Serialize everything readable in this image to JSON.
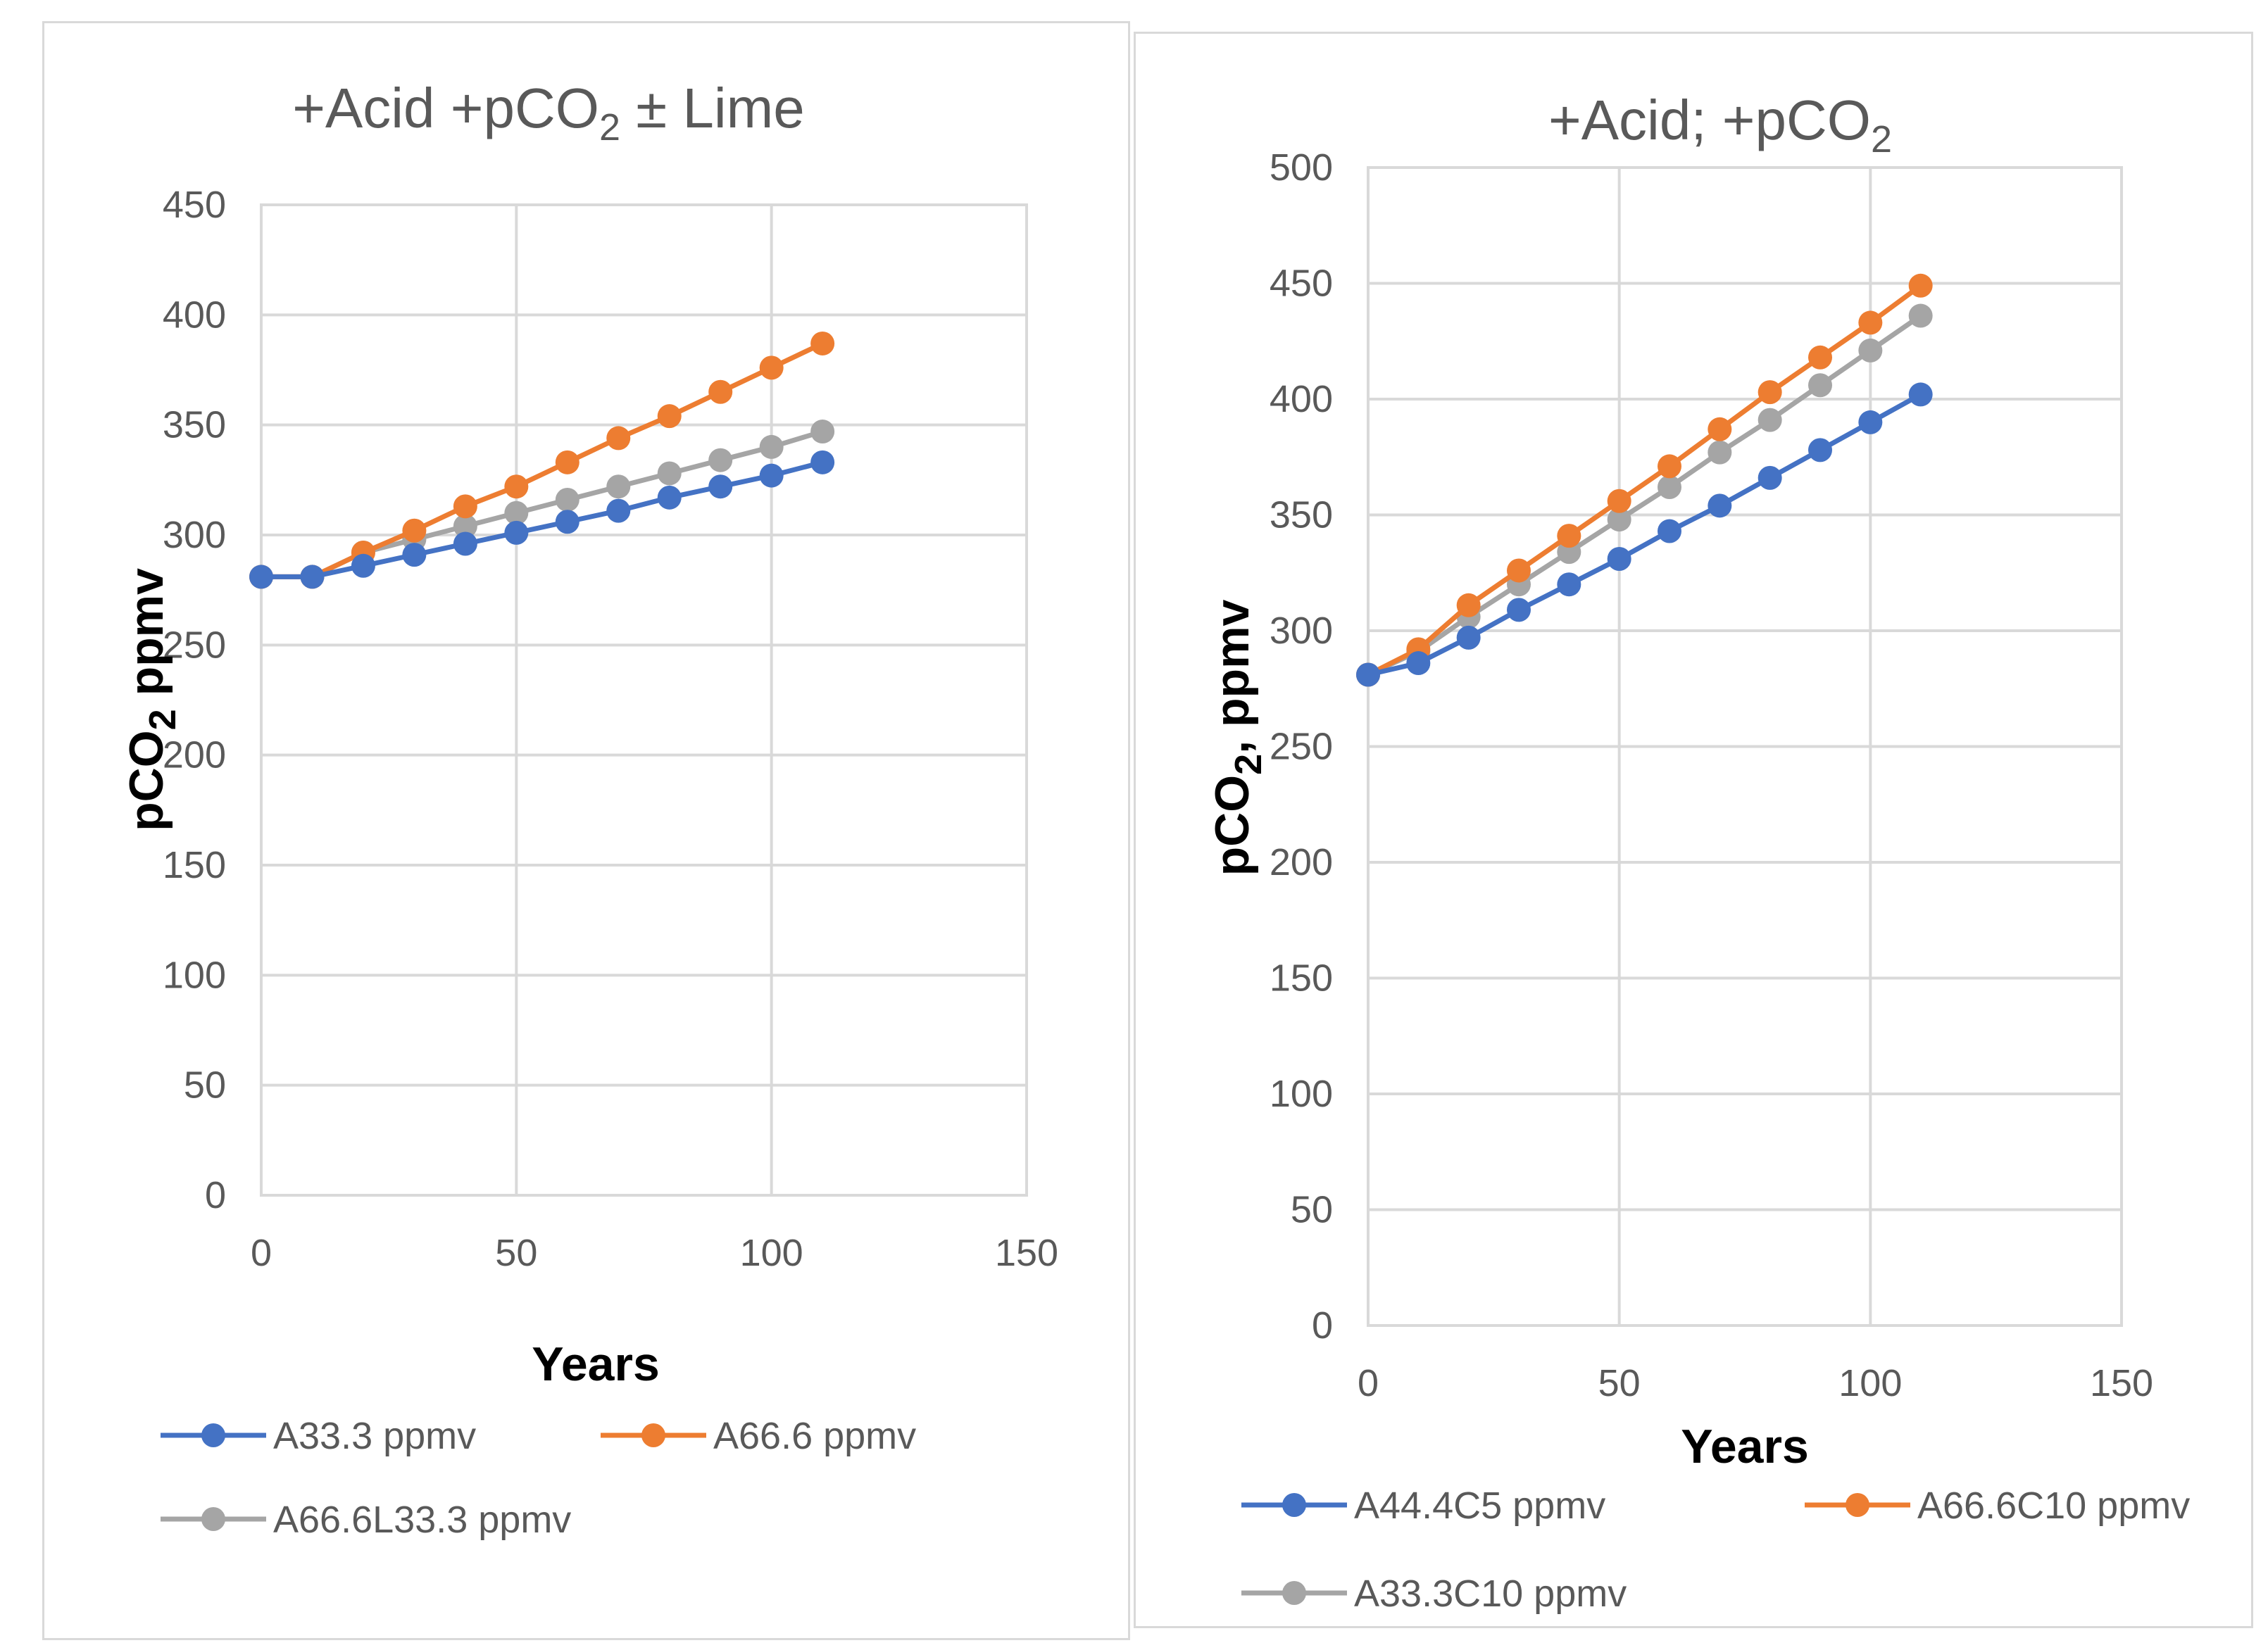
{
  "chart_data": [
    {
      "type": "line",
      "title": "+Acid +pCO₂ ± Lime",
      "title_parts": {
        "main": "+Acid +pCO",
        "sub": "2",
        "tail": " ± Lime"
      },
      "xlabel": "Years",
      "ylabel": "pCO₂ ppmv",
      "ylabel_parts": {
        "main": "pCO",
        "sub": "2",
        "tail": " ppmv"
      },
      "xlim": [
        0,
        150
      ],
      "ylim": [
        0,
        450
      ],
      "x_ticks": [
        0,
        50,
        100,
        150
      ],
      "y_ticks": [
        0,
        50,
        100,
        150,
        200,
        250,
        300,
        350,
        400,
        450
      ],
      "grid": true,
      "legend_position": "bottom",
      "x": [
        0,
        10,
        20,
        30,
        40,
        50,
        60,
        70,
        80,
        90,
        100,
        110
      ],
      "series": [
        {
          "name": "A33.3  ppmv",
          "color": "#4472c4",
          "values": [
            281,
            281,
            286,
            291,
            296,
            301,
            306,
            311,
            317,
            322,
            327,
            333
          ]
        },
        {
          "name": "A66.6  ppmv",
          "color": "#ed7d31",
          "values": [
            281,
            281,
            292,
            302,
            313,
            322,
            333,
            344,
            354,
            365,
            376,
            387
          ]
        },
        {
          "name": "A66.6L33.3 ppmv",
          "color": "#a5a5a5",
          "values": [
            281,
            281,
            292,
            298,
            304,
            310,
            316,
            322,
            328,
            334,
            340,
            347
          ]
        }
      ]
    },
    {
      "type": "line",
      "title": "+Acid; +pCO₂",
      "title_parts": {
        "main": "+Acid; +pCO",
        "sub": "2",
        "tail": ""
      },
      "xlabel": "Years",
      "ylabel": "pCO₂,  ppmv",
      "ylabel_parts": {
        "main": "pCO",
        "sub": "2",
        "tail": ",  ppmv"
      },
      "xlim": [
        0,
        150
      ],
      "ylim": [
        0,
        500
      ],
      "x_ticks": [
        0,
        50,
        100,
        150
      ],
      "y_ticks": [
        0,
        50,
        100,
        150,
        200,
        250,
        300,
        350,
        400,
        450,
        500
      ],
      "grid": true,
      "legend_position": "bottom",
      "x": [
        0,
        10,
        20,
        30,
        40,
        50,
        60,
        70,
        80,
        90,
        100,
        110
      ],
      "series": [
        {
          "name": "A44.4C5  ppmv",
          "color": "#4472c4",
          "values": [
            281,
            286,
            297,
            309,
            320,
            331,
            343,
            354,
            366,
            378,
            390,
            402
          ]
        },
        {
          "name": "A66.6C10  ppmv",
          "color": "#ed7d31",
          "values": [
            281,
            292,
            311,
            326,
            341,
            356,
            371,
            387,
            403,
            418,
            433,
            449
          ]
        },
        {
          "name": "A33.3C10 ppmv",
          "color": "#a5a5a5",
          "values": [
            281,
            291,
            306,
            320,
            334,
            348,
            362,
            377,
            391,
            406,
            421,
            436
          ]
        }
      ]
    }
  ]
}
